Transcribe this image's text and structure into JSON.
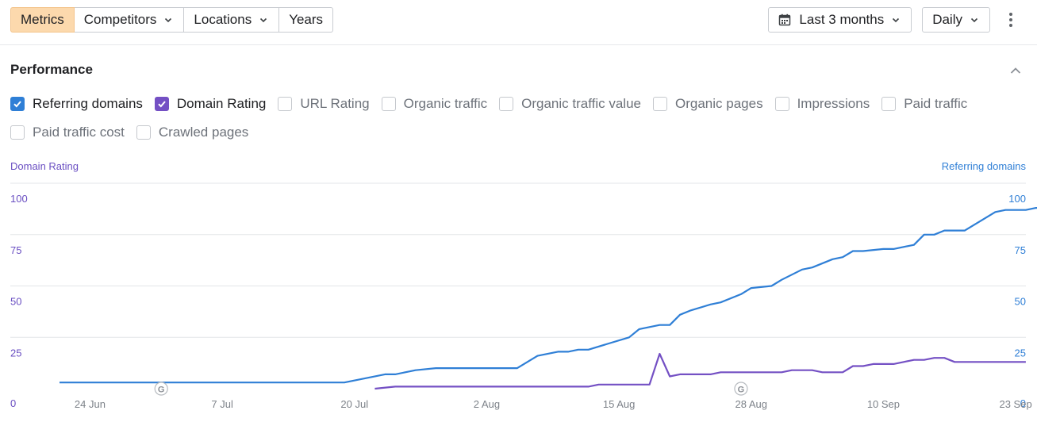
{
  "toolbar": {
    "segments": [
      {
        "label": "Metrics",
        "active": true,
        "dropdown": false
      },
      {
        "label": "Competitors",
        "active": false,
        "dropdown": true
      },
      {
        "label": "Locations",
        "active": false,
        "dropdown": true
      },
      {
        "label": "Years",
        "active": false,
        "dropdown": false
      }
    ],
    "date_range": "Last 3 months",
    "interval": "Daily",
    "icons": {
      "date": "calendar-icon",
      "more": "more-vertical-icon",
      "dropdown": "chevron-down-icon"
    }
  },
  "section": {
    "title": "Performance",
    "collapse_icon": "chevron-up-icon"
  },
  "metrics": [
    {
      "label": "Referring domains",
      "checked": true,
      "color": "#2f7fd6"
    },
    {
      "label": "Domain Rating",
      "checked": true,
      "color": "#7450c4"
    },
    {
      "label": "URL Rating",
      "checked": false
    },
    {
      "label": "Organic traffic",
      "checked": false
    },
    {
      "label": "Organic traffic value",
      "checked": false
    },
    {
      "label": "Organic pages",
      "checked": false
    },
    {
      "label": "Impressions",
      "checked": false
    },
    {
      "label": "Paid traffic",
      "checked": false
    },
    {
      "label": "Paid traffic cost",
      "checked": false
    },
    {
      "label": "Crawled pages",
      "checked": false
    }
  ],
  "chart_data": {
    "type": "line",
    "ylabel_left": "Domain Rating",
    "ylabel_right": "Referring domains",
    "ylim": [
      0,
      100
    ],
    "yticks": [
      "0",
      "25",
      "50",
      "75",
      "100"
    ],
    "grid": true,
    "xlim": [
      "2024-06-20",
      "2024-09-25"
    ],
    "xticks": [
      {
        "date": "2024-06-24",
        "label": "24 Jun"
      },
      {
        "date": "2024-07-07",
        "label": "7 Jul"
      },
      {
        "date": "2024-07-20",
        "label": "20 Jul"
      },
      {
        "date": "2024-08-02",
        "label": "2 Aug"
      },
      {
        "date": "2024-08-15",
        "label": "15 Aug"
      },
      {
        "date": "2024-08-28",
        "label": "28 Aug"
      },
      {
        "date": "2024-09-10",
        "label": "10 Sep"
      },
      {
        "date": "2024-09-23",
        "label": "23 Sep"
      }
    ],
    "annotations": [
      {
        "date": "2024-07-01",
        "label": "G"
      },
      {
        "date": "2024-08-27",
        "label": "G"
      }
    ],
    "series": [
      {
        "name": "Referring domains",
        "color": "#2f7fd6",
        "axis": "right",
        "points": [
          [
            "2024-06-21",
            3
          ],
          [
            "2024-07-19",
            3
          ],
          [
            "2024-07-21",
            5
          ],
          [
            "2024-07-23",
            7
          ],
          [
            "2024-07-24",
            7
          ],
          [
            "2024-07-26",
            9
          ],
          [
            "2024-07-28",
            10
          ],
          [
            "2024-08-05",
            10
          ],
          [
            "2024-08-07",
            16
          ],
          [
            "2024-08-09",
            18
          ],
          [
            "2024-08-10",
            18
          ],
          [
            "2024-08-11",
            19
          ],
          [
            "2024-08-12",
            19
          ],
          [
            "2024-08-14",
            22
          ],
          [
            "2024-08-16",
            25
          ],
          [
            "2024-08-17",
            29
          ],
          [
            "2024-08-19",
            31
          ],
          [
            "2024-08-20",
            31
          ],
          [
            "2024-08-21",
            36
          ],
          [
            "2024-08-22",
            38
          ],
          [
            "2024-08-24",
            41
          ],
          [
            "2024-08-25",
            42
          ],
          [
            "2024-08-27",
            46
          ],
          [
            "2024-08-28",
            49
          ],
          [
            "2024-08-30",
            50
          ],
          [
            "2024-08-31",
            53
          ],
          [
            "2024-09-02",
            58
          ],
          [
            "2024-09-03",
            59
          ],
          [
            "2024-09-05",
            63
          ],
          [
            "2024-09-06",
            64
          ],
          [
            "2024-09-07",
            67
          ],
          [
            "2024-09-08",
            67
          ],
          [
            "2024-09-10",
            68
          ],
          [
            "2024-09-11",
            68
          ],
          [
            "2024-09-13",
            70
          ],
          [
            "2024-09-14",
            75
          ],
          [
            "2024-09-15",
            75
          ],
          [
            "2024-09-16",
            77
          ],
          [
            "2024-09-18",
            77
          ],
          [
            "2024-09-21",
            86
          ],
          [
            "2024-09-22",
            87
          ],
          [
            "2024-09-24",
            87
          ],
          [
            "2024-09-25",
            88
          ],
          [
            "2024-09-26",
            88
          ]
        ]
      },
      {
        "name": "Domain Rating",
        "color": "#7450c4",
        "axis": "left",
        "points": [
          [
            "2024-07-22",
            0
          ],
          [
            "2024-07-24",
            1
          ],
          [
            "2024-08-12",
            1
          ],
          [
            "2024-08-13",
            2
          ],
          [
            "2024-08-18",
            2
          ],
          [
            "2024-08-19",
            17
          ],
          [
            "2024-08-20",
            6
          ],
          [
            "2024-08-21",
            7
          ],
          [
            "2024-08-24",
            7
          ],
          [
            "2024-08-25",
            8
          ],
          [
            "2024-08-31",
            8
          ],
          [
            "2024-09-01",
            9
          ],
          [
            "2024-09-03",
            9
          ],
          [
            "2024-09-04",
            8
          ],
          [
            "2024-09-06",
            8
          ],
          [
            "2024-09-07",
            11
          ],
          [
            "2024-09-08",
            11
          ],
          [
            "2024-09-09",
            12
          ],
          [
            "2024-09-11",
            12
          ],
          [
            "2024-09-12",
            13
          ],
          [
            "2024-09-13",
            14
          ],
          [
            "2024-09-14",
            14
          ],
          [
            "2024-09-15",
            15
          ],
          [
            "2024-09-16",
            15
          ],
          [
            "2024-09-17",
            13
          ],
          [
            "2024-09-24",
            13
          ]
        ]
      }
    ]
  }
}
